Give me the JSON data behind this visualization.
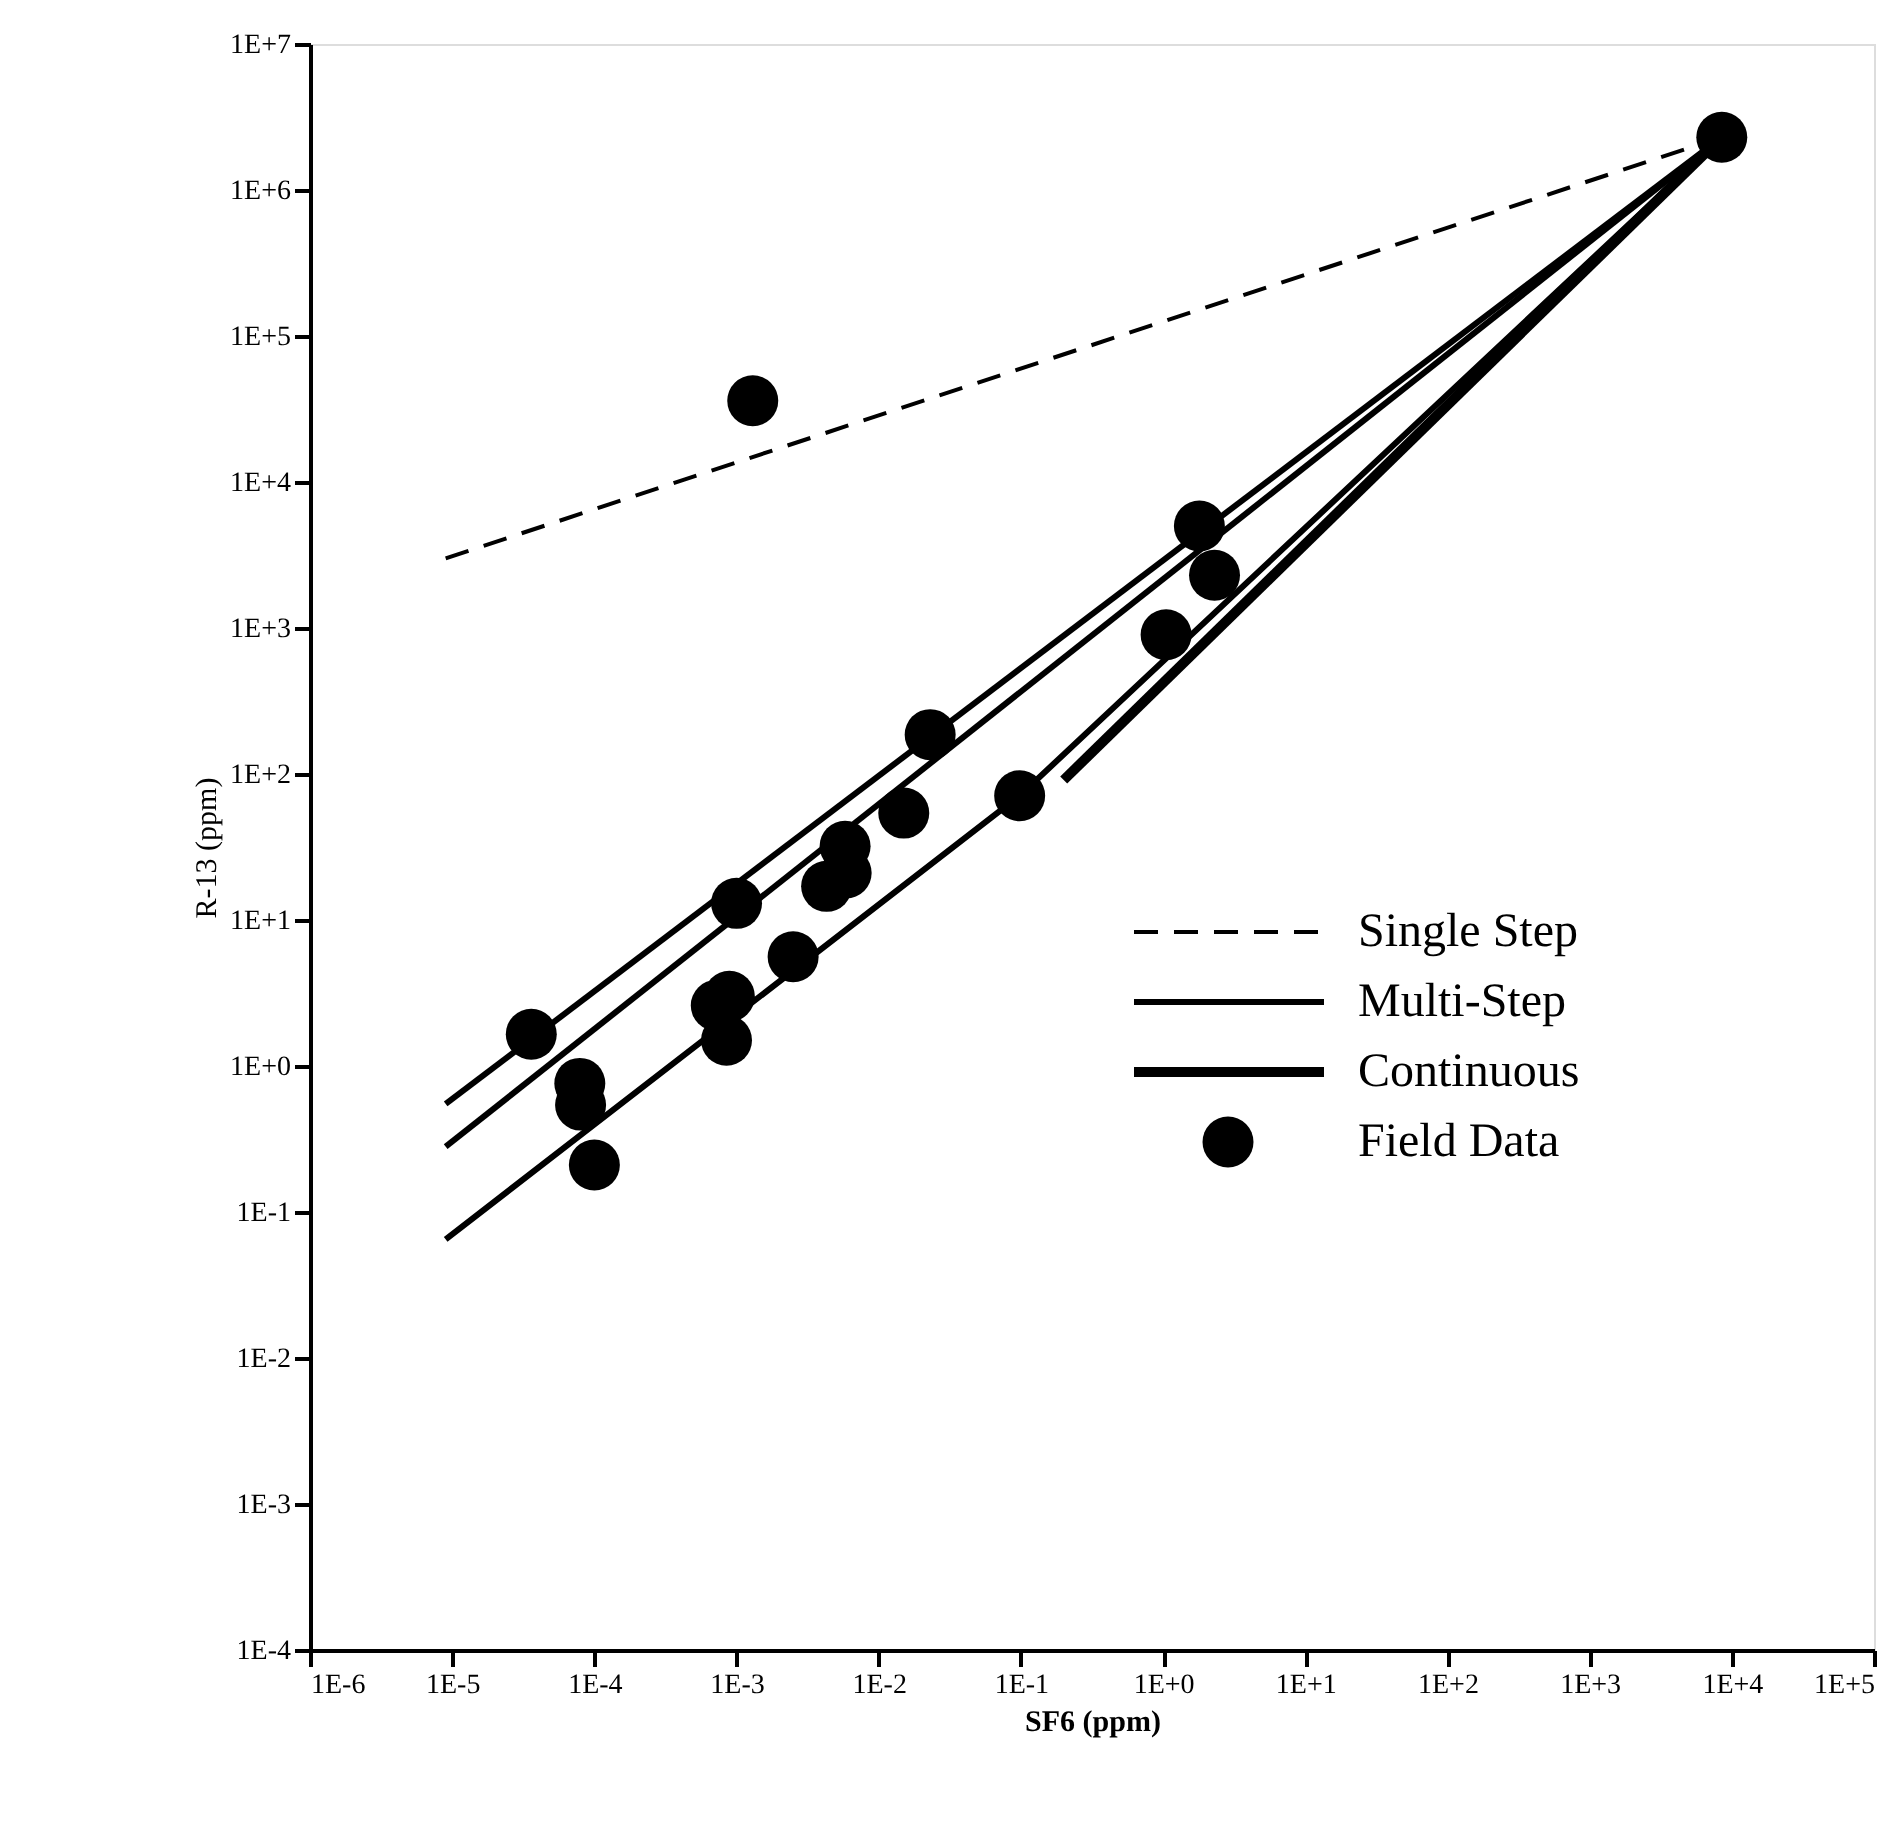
{
  "chart_data": {
    "type": "line",
    "xlabel": "SF6 (ppm)",
    "ylabel": "R-13 (ppm)",
    "log": "xy",
    "grid": false,
    "legend": "right",
    "xlim": [
      1e-06,
      100000.0
    ],
    "ylim": [
      0.0001,
      10000000.0
    ],
    "xticks": [
      {
        "value": 1e-06,
        "label": "1E-6"
      },
      {
        "value": 1e-05,
        "label": "1E-5"
      },
      {
        "value": 0.0001,
        "label": "1E-4"
      },
      {
        "value": 0.001,
        "label": "1E-3"
      },
      {
        "value": 0.01,
        "label": "1E-2"
      },
      {
        "value": 0.1,
        "label": "1E-1"
      },
      {
        "value": 1,
        "label": "1E+0"
      },
      {
        "value": 10,
        "label": "1E+1"
      },
      {
        "value": 100,
        "label": "1E+2"
      },
      {
        "value": 1000,
        "label": "1E+3"
      },
      {
        "value": 10000,
        "label": "1E+4"
      },
      {
        "value": 100000,
        "label": "1E+5"
      }
    ],
    "yticks": [
      {
        "value": 0.0001,
        "label": "1E-4"
      },
      {
        "value": 0.001,
        "label": "1E-3"
      },
      {
        "value": 0.01,
        "label": "1E-2"
      },
      {
        "value": 0.1,
        "label": "1E-1"
      },
      {
        "value": 1,
        "label": "1E+0"
      },
      {
        "value": 10,
        "label": "1E+1"
      },
      {
        "value": 100,
        "label": "1E+2"
      },
      {
        "value": 1000,
        "label": "1E+3"
      },
      {
        "value": 10000,
        "label": "1E+4"
      },
      {
        "value": 100000,
        "label": "1E+5"
      },
      {
        "value": 1000000,
        "label": "1E+6"
      },
      {
        "value": 10000000,
        "label": "1E+7"
      }
    ],
    "series": [
      {
        "name": "Single Step",
        "type": "line",
        "line_style": "dashed",
        "color": "#000000",
        "x": [
          9e-06,
          8500
        ],
        "values": [
          3000,
          2300000
        ]
      },
      {
        "name": "Multi-Step",
        "type": "line",
        "line_style": "solid",
        "color": "#000000",
        "x": [
          9e-06,
          8500
        ],
        "values": [
          0.55,
          2300000
        ]
      },
      {
        "type": "line",
        "line_style": "solid",
        "color": "#000000",
        "x": [
          9e-06,
          8500
        ],
        "values": [
          0.28,
          2300000
        ]
      },
      {
        "type": "line",
        "line_style": "solid",
        "color": "#000000",
        "x": [
          9e-06,
          0.098,
          8500
        ],
        "values": [
          0.065,
          71,
          2300000
        ]
      },
      {
        "name": "Continuous",
        "type": "line",
        "line_style": "solid",
        "color": "#000000",
        "x": [
          0.2,
          8500
        ],
        "values": [
          91,
          2300000
        ]
      },
      {
        "name": "Field Data",
        "type": "scatter",
        "marker": "circle",
        "color": "#000000",
        "x": [
          3.6e-05,
          0.0013,
          1.8,
          2.3,
          1.05,
          0.023,
          0.098,
          0.015,
          0.0058,
          0.0059,
          0.0043,
          0.001,
          0.0025,
          0.00089,
          0.00072,
          0.00085,
          7.9e-05,
          8e-05,
          0.0001,
          8500
        ],
        "values": [
          1.65,
          36000,
          5000,
          2300,
          900,
          186,
          71,
          54,
          32,
          21,
          17,
          13,
          5.6,
          3.0,
          2.6,
          1.5,
          0.76,
          0.54,
          0.21,
          2300000
        ]
      }
    ]
  }
}
